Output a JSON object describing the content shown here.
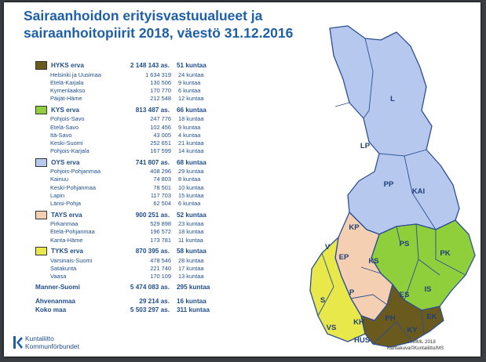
{
  "title": {
    "line1": "Sairaanhoidon erityisvastuualueet ja",
    "line2": "sairaanhoitopiirit 2018, väestö 31.12.2016"
  },
  "colors": {
    "hyks": "#6a5a1e",
    "kys": "#8fcf3c",
    "oys": "#b7c8ee",
    "tays": "#f5cfb2",
    "tyks": "#e8e84a"
  },
  "groups": [
    {
      "name": "HYKS erva",
      "pop": "2 148 143 as.",
      "munic": "51 kuntaa",
      "rows": [
        {
          "name": "Helsinki ja Uusimaa",
          "pop": "1 634 319",
          "munic": "24 kuntaa"
        },
        {
          "name": "Etelä-Karjala",
          "pop": "130 506",
          "munic": "9 kuntaa"
        },
        {
          "name": "Kymenlaakso",
          "pop": "170 770",
          "munic": "6 kuntaa"
        },
        {
          "name": "Päijät-Häme",
          "pop": "212 548",
          "munic": "12 kuntaa"
        }
      ]
    },
    {
      "name": "KYS erva",
      "pop": "813 487 as.",
      "munic": "66 kuntaa",
      "rows": [
        {
          "name": "Pohjois-Savo",
          "pop": "247 776",
          "munic": "18 kuntaa"
        },
        {
          "name": "Etelä-Savo",
          "pop": "102 456",
          "munic": "9 kuntaa"
        },
        {
          "name": "Itä-Savo",
          "pop": "43 005",
          "munic": "4 kuntaa"
        },
        {
          "name": "Keski-Suomi",
          "pop": "252 651",
          "munic": "21 kuntaa"
        },
        {
          "name": "Pohjois-Karjala",
          "pop": "167 599",
          "munic": "14 kuntaa"
        }
      ]
    },
    {
      "name": "OYS erva",
      "pop": "741 807 as.",
      "munic": "68 kuntaa",
      "rows": [
        {
          "name": "Pohjois-Pohjanmaa",
          "pop": "408 296",
          "munic": "29 kuntaa"
        },
        {
          "name": "Kainuu",
          "pop": "74 803",
          "munic": "8 kuntaa"
        },
        {
          "name": "Keski-Pohjanmaa",
          "pop": "78 501",
          "munic": "10 kuntaa"
        },
        {
          "name": "Lapin",
          "pop": "117 703",
          "munic": "15 kuntaa"
        },
        {
          "name": "Länsi-Pohja",
          "pop": "62 504",
          "munic": "6 kuntaa"
        }
      ]
    },
    {
      "name": "TAYS erva",
      "pop": "900 251 as.",
      "munic": "52 kuntaa",
      "rows": [
        {
          "name": "Pirkanmaa",
          "pop": "529 898",
          "munic": "23 kuntaa"
        },
        {
          "name": "Etelä-Pohjanmaa",
          "pop": "196 572",
          "munic": "18 kuntaa"
        },
        {
          "name": "Kanta-Häme",
          "pop": "173 781",
          "munic": "11 kuntaa"
        }
      ]
    },
    {
      "name": "TYKS erva",
      "pop": "870 395 as.",
      "munic": "58 kuntaa",
      "rows": [
        {
          "name": "Varsinais-Suomi",
          "pop": "478 546",
          "munic": "28 kuntaa"
        },
        {
          "name": "Satakunta",
          "pop": "221 740",
          "munic": "17 kuntaa"
        },
        {
          "name": "Vaasa",
          "pop": "170 109",
          "munic": "13 kuntaa"
        }
      ]
    }
  ],
  "totals": {
    "mainland": {
      "name": "Manner-Suomi",
      "pop": "5 474 083 as.",
      "munic": "295 kuntaa"
    },
    "aland": {
      "name": "Ahvenanmaa",
      "pop": "29 214 as.",
      "munic": "16 kuntaa"
    },
    "whole": {
      "name": "Koko maa",
      "pop": "5 503 297 as.",
      "munic": "311 kuntaa"
    }
  },
  "logo": {
    "line1": "Kuntaliitto",
    "line2": "Kommunförbundet"
  },
  "credits": {
    "line1": "Kuntarajat©MML 2018",
    "line2": "Karttakuva©Kuntaliitto/MS"
  },
  "map_labels": {
    "L": "L",
    "LP": "LP",
    "PP": "PP",
    "KAI": "KAI",
    "KP": "KP",
    "V": "V",
    "EP": "EP",
    "KS": "KS",
    "PS": "PS",
    "PK": "PK",
    "P": "P",
    "ES": "ES",
    "IS": "IS",
    "S": "S",
    "KH": "KH",
    "PH": "PH",
    "VS": "VS",
    "HUS": "HUS",
    "EK": "EK",
    "KY": "KY"
  }
}
